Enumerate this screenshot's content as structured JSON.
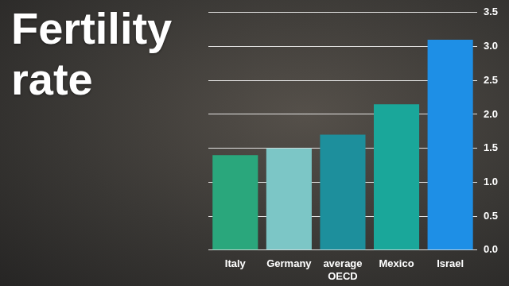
{
  "chart_data": {
    "type": "bar",
    "title": "Fertility rate",
    "categories": [
      "Italy",
      "Germany",
      "average OECD",
      "Mexico",
      "Israel"
    ],
    "values": [
      1.4,
      1.5,
      1.7,
      2.15,
      3.1
    ],
    "colors": [
      "#2aa77c",
      "#7cc6c6",
      "#1d8f9c",
      "#1aa79a",
      "#1e8fe6"
    ],
    "ylim": [
      0,
      3.5
    ],
    "yticks": [
      {
        "value": 0,
        "label": "0.0"
      },
      {
        "value": 0.5,
        "label": "0.5"
      },
      {
        "value": 1,
        "label": "1.0"
      },
      {
        "value": 1.5,
        "label": "1.5"
      },
      {
        "value": 2,
        "label": "2.0"
      },
      {
        "value": 2.5,
        "label": "2.5"
      },
      {
        "value": 3,
        "label": "3.0"
      },
      {
        "value": 3.5,
        "label": "3.5"
      }
    ],
    "grid": true
  }
}
